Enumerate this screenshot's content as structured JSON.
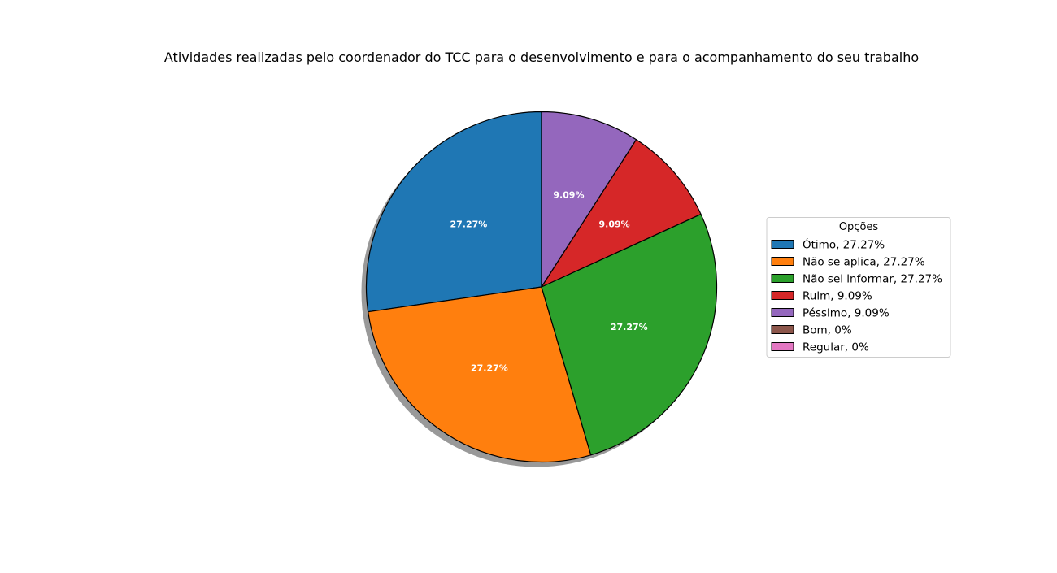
{
  "chart_data": {
    "type": "pie",
    "title": "Atividades realizadas pelo coordenador do TCC para o desenvolvimento e para o acompanhamento do seu trabalho",
    "legend_title": "Opções",
    "legend_position": "right",
    "start_angle_deg": 90,
    "direction": "counterclockwise",
    "shadow": true,
    "edge_color": "#000000",
    "slices": [
      {
        "label": "Ótimo",
        "value": 27.27,
        "pct_label": "27.27%",
        "legend_label": "Ótimo, 27.27%",
        "color": "#1f77b4"
      },
      {
        "label": "Não se aplica",
        "value": 27.27,
        "pct_label": "27.27%",
        "legend_label": "Não se aplica, 27.27%",
        "color": "#ff7f0e"
      },
      {
        "label": "Não sei informar",
        "value": 27.27,
        "pct_label": "27.27%",
        "legend_label": "Não sei informar, 27.27%",
        "color": "#2ca02c"
      },
      {
        "label": "Ruim",
        "value": 9.09,
        "pct_label": "9.09%",
        "legend_label": "Ruim, 9.09%",
        "color": "#d62728"
      },
      {
        "label": "Péssimo",
        "value": 9.09,
        "pct_label": "9.09%",
        "legend_label": "Péssimo, 9.09%",
        "color": "#9467bd"
      },
      {
        "label": "Bom",
        "value": 0,
        "pct_label": "",
        "legend_label": "Bom, 0%",
        "color": "#8c564b"
      },
      {
        "label": "Regular",
        "value": 0,
        "pct_label": "",
        "legend_label": "Regular, 0%",
        "color": "#e377c2"
      }
    ]
  }
}
